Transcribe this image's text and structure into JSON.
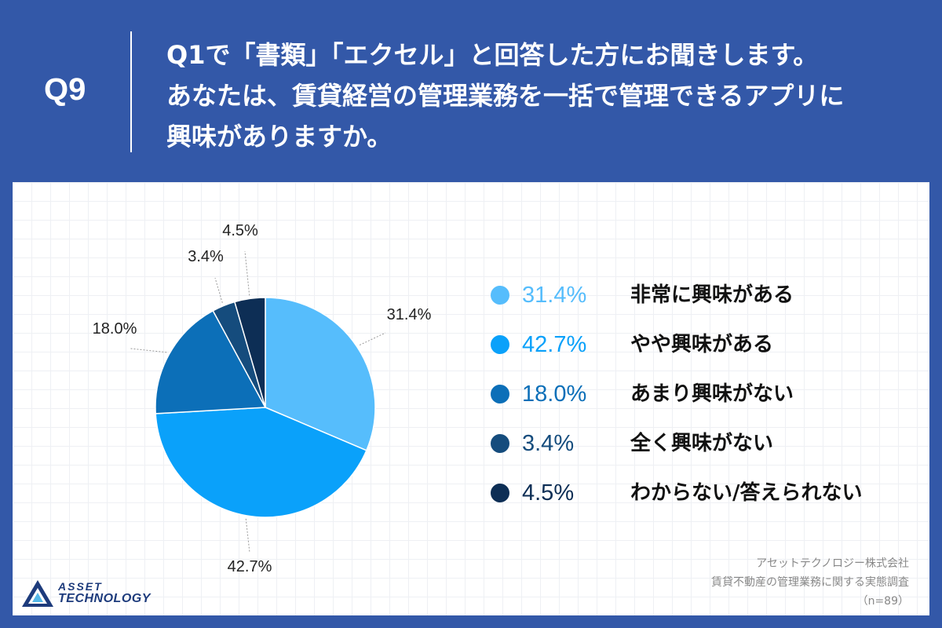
{
  "header": {
    "qnum": "Q9",
    "question_lines": [
      "Q1で「書類」「エクセル」と回答した方にお聞きします。",
      "あなたは、賃貸経営の管理業務を一括で管理できるアプリに",
      "興味がありますか。"
    ]
  },
  "chart_data": {
    "type": "pie",
    "categories": [
      "非常に興味がある",
      "やや興味がある",
      "あまり興味がない",
      "全く興味がない",
      "わからない/答えられない"
    ],
    "values": [
      31.4,
      42.7,
      18.0,
      3.4,
      4.5
    ],
    "value_labels": [
      "31.4%",
      "42.7%",
      "18.0%",
      "3.4%",
      "4.5%"
    ],
    "colors": [
      "#56bdfc",
      "#0aa1fa",
      "#0c6fb8",
      "#154c7d",
      "#0d2e55"
    ],
    "legend_placement": "right"
  },
  "logo": {
    "line1": "ASSET",
    "line2": "TECHNOLOGY",
    "icon": "triangle-logo-icon"
  },
  "source": {
    "company": "アセットテクノロジー株式会社",
    "survey": "賃貸不動産の管理業務に関する実態調査",
    "n": "（n=89）"
  }
}
